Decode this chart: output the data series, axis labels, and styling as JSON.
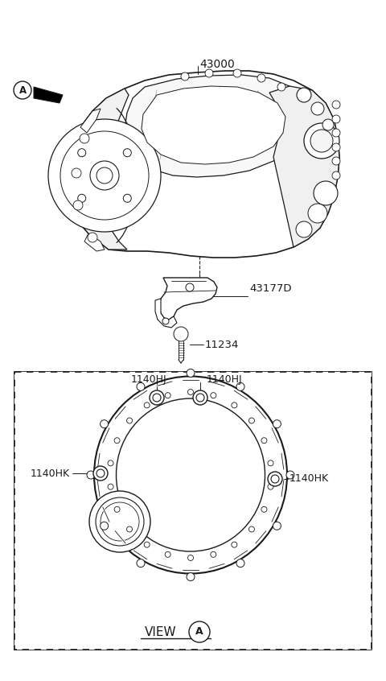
{
  "bg_color": "#ffffff",
  "line_color": "#1a1a1a",
  "fig_width": 4.8,
  "fig_height": 8.46,
  "dpi": 100,
  "parts": {
    "transaxle_label": "43000",
    "bracket_label": "43177D",
    "bolt_label": "11234",
    "bolt_hj_left": "1140HJ",
    "bolt_hj_right": "1140HJ",
    "bolt_hk_left": "1140HK",
    "bolt_hk_right": "1140HK"
  },
  "view_label": "VIEW",
  "view_circle_label": "A",
  "circle_A_label": "A"
}
